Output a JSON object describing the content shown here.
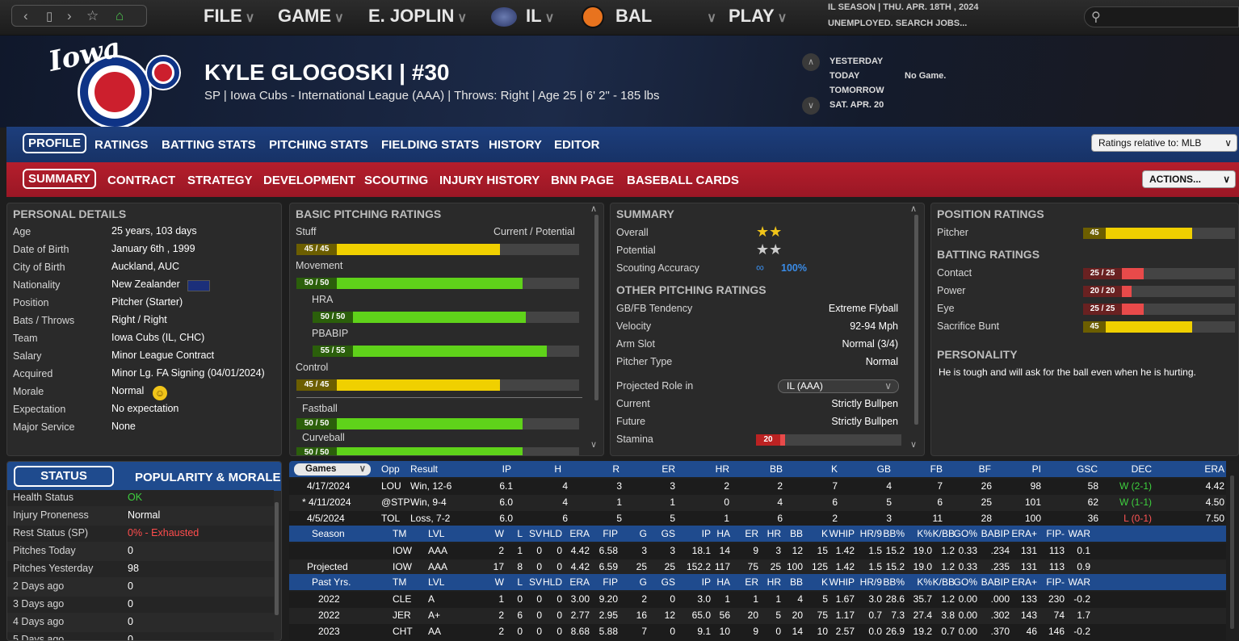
{
  "topbar": {
    "menus": [
      "FILE",
      "GAME",
      "E. JOPLIN",
      "IL",
      "BAL",
      "PLAY"
    ],
    "season_line": "IL SEASON  |  THU. APR. 18TH , 2024",
    "status_line": "UNEMPLOYED. SEARCH JOBS..."
  },
  "player": {
    "name": "KYLE GLOGOSKI  |  #30",
    "subtitle": "SP | Iowa Cubs - International League (AAA)  |  Throws: Right  |  Age 25  |  6' 2\" - 185 lbs"
  },
  "schedule": {
    "days": [
      "YESTERDAY",
      "TODAY",
      "TOMORROW",
      "SAT. APR. 20"
    ],
    "today_game": "No Game."
  },
  "tabs_primary": [
    "PROFILE",
    "RATINGS",
    "BATTING STATS",
    "PITCHING STATS",
    "FIELDING STATS",
    "HISTORY",
    "EDITOR"
  ],
  "tabs_secondary": [
    "SUMMARY",
    "CONTRACT",
    "STRATEGY",
    "DEVELOPMENT",
    "SCOUTING",
    "INJURY HISTORY",
    "BNN PAGE",
    "BASEBALL CARDS"
  ],
  "ratings_relative": "Ratings relative to: MLB",
  "actions": "ACTIONS...",
  "personal": {
    "title": "PERSONAL DETAILS",
    "rows": [
      [
        "Age",
        "25 years, 103 days"
      ],
      [
        "Date of Birth",
        "January 6th , 1999"
      ],
      [
        "City of Birth",
        "Auckland, AUC"
      ],
      [
        "Nationality",
        "New Zealander"
      ],
      [
        "Position",
        "Pitcher (Starter)"
      ],
      [
        "Bats / Throws",
        "Right / Right"
      ],
      [
        "Team",
        "Iowa Cubs (IL, CHC)"
      ],
      [
        "Salary",
        "Minor League Contract"
      ],
      [
        "Acquired",
        "Minor Lg. FA Signing (04/01/2024)"
      ],
      [
        "Morale",
        "Normal"
      ],
      [
        "Expectation",
        "No expectation"
      ],
      [
        "Major Service",
        "None"
      ]
    ]
  },
  "basic_pitching": {
    "title": "BASIC PITCHING RATINGS",
    "col": "Current / Potential",
    "rows": [
      {
        "label": "Stuff",
        "text": "45 / 45",
        "value": 45,
        "color": "#f0d000"
      },
      {
        "label": "Movement",
        "text": "50 / 50",
        "value": 50,
        "color": "#5fd21a"
      },
      {
        "label": "HRA",
        "text": "50 / 50",
        "value": 50,
        "color": "#5fd21a"
      },
      {
        "label": "PBABIP",
        "text": "55 / 55",
        "value": 55,
        "color": "#5fd21a"
      },
      {
        "label": "Control",
        "text": "45 / 45",
        "value": 45,
        "color": "#f0d000"
      },
      {
        "label": "Fastball",
        "text": "50 / 50",
        "value": 50,
        "color": "#5fd21a"
      },
      {
        "label": "Curveball",
        "text": "50 / 50",
        "value": 50,
        "color": "#5fd21a"
      }
    ]
  },
  "summary": {
    "title": "SUMMARY",
    "overall_label": "Overall",
    "overall_stars": 2,
    "potential_label": "Potential",
    "potential_stars": 2,
    "scouting_label": "Scouting Accuracy",
    "scouting_value": "100%",
    "other_title": "OTHER PITCHING RATINGS",
    "other": [
      [
        "GB/FB Tendency",
        "Extreme Flyball"
      ],
      [
        "Velocity",
        "92-94 Mph"
      ],
      [
        "Arm Slot",
        "Normal (3/4)"
      ],
      [
        "Pitcher Type",
        "Normal"
      ]
    ],
    "role_label": "Projected Role in",
    "role_select": "IL (AAA)",
    "current_label": "Current",
    "current_value": "Strictly Bullpen",
    "future_label": "Future",
    "future_value": "Strictly Bullpen",
    "stamina_label": "Stamina",
    "stamina_text": "20",
    "stamina_value": 20
  },
  "position": {
    "title": "POSITION RATINGS",
    "rows": [
      {
        "label": "Pitcher",
        "text": "45",
        "value": 45,
        "color": "#f0d000"
      }
    ],
    "batting_title": "BATTING RATINGS",
    "batting": [
      {
        "label": "Contact",
        "text": "25 / 25",
        "value": 25,
        "color": "#e84a4a"
      },
      {
        "label": "Power",
        "text": "20 / 20",
        "value": 20,
        "color": "#e84a4a"
      },
      {
        "label": "Eye",
        "text": "25 / 25",
        "value": 25,
        "color": "#e84a4a"
      },
      {
        "label": "Sacrifice Bunt",
        "text": "45",
        "value": 45,
        "color": "#f0d000"
      }
    ],
    "personality_title": "PERSONALITY",
    "personality": "He is tough and will ask for the ball even when he is hurting."
  },
  "status": {
    "tab_status": "STATUS",
    "tab_pop": "POPULARITY & MORALE",
    "rows": [
      [
        "Health Status",
        "OK",
        "#3ed13e"
      ],
      [
        "Injury Proneness",
        "Normal",
        "#fff"
      ],
      [
        "Rest Status (SP)",
        "0% - Exhausted",
        "#ff4d4d"
      ],
      [
        "Pitches Today",
        "0",
        "#fff"
      ],
      [
        "Pitches Yesterday",
        "98",
        "#fff"
      ],
      [
        "2 Days ago",
        "0",
        "#fff"
      ],
      [
        "3 Days ago",
        "0",
        "#fff"
      ],
      [
        "4 Days ago",
        "0",
        "#fff"
      ],
      [
        "5 Days ago",
        "0",
        "#fff"
      ]
    ]
  },
  "games": {
    "select": "Games",
    "headers": [
      "Opp",
      "Result",
      "IP",
      "H",
      "R",
      "ER",
      "HR",
      "BB",
      "K",
      "GB",
      "FB",
      "BF",
      "PI",
      "GSC",
      "DEC",
      "ERA"
    ],
    "rows": [
      [
        "4/17/2024",
        "LOU",
        "Win, 12-6",
        "6.1",
        "4",
        "3",
        "3",
        "2",
        "2",
        "7",
        "4",
        "7",
        "26",
        "98",
        "58",
        "W (2-1)",
        "4.42"
      ],
      [
        "* 4/11/2024",
        "@STP",
        "Win, 9-4",
        "6.0",
        "4",
        "1",
        "1",
        "0",
        "4",
        "6",
        "5",
        "6",
        "25",
        "101",
        "62",
        "W (1-1)",
        "4.50"
      ],
      [
        "4/5/2024",
        "TOL",
        "Loss, 7-2",
        "6.0",
        "6",
        "5",
        "5",
        "1",
        "6",
        "2",
        "3",
        "11",
        "28",
        "100",
        "36",
        "L (0-1)",
        "7.50"
      ]
    ]
  },
  "stats": {
    "headers": [
      "TM",
      "LVL",
      "W",
      "L",
      "SV",
      "HLD",
      "ERA",
      "FIP",
      "G",
      "GS",
      "IP",
      "HA",
      "ER",
      "HR",
      "BB",
      "K",
      "WHIP",
      "HR/9",
      "BB%",
      "K%",
      "K/BB",
      "GO%",
      "BABIP",
      "ERA+",
      "FIP-",
      "WAR"
    ],
    "season_label": "Season",
    "past_label": "Past Yrs.",
    "season": [
      [
        "",
        "IOW",
        "AAA",
        "2",
        "1",
        "0",
        "0",
        "4.42",
        "6.58",
        "3",
        "3",
        "18.1",
        "14",
        "9",
        "3",
        "12",
        "15",
        "1.42",
        "1.5",
        "15.2",
        "19.0",
        "1.2",
        "0.33",
        ".234",
        "131",
        "113",
        "0.1"
      ],
      [
        "Projected",
        "IOW",
        "AAA",
        "17",
        "8",
        "0",
        "0",
        "4.42",
        "6.59",
        "25",
        "25",
        "152.2",
        "117",
        "75",
        "25",
        "100",
        "125",
        "1.42",
        "1.5",
        "15.2",
        "19.0",
        "1.2",
        "0.33",
        ".235",
        "131",
        "113",
        "0.9"
      ]
    ],
    "past": [
      [
        "2022",
        "CLE",
        "A",
        "1",
        "0",
        "0",
        "0",
        "3.00",
        "9.20",
        "2",
        "0",
        "3.0",
        "1",
        "1",
        "1",
        "4",
        "5",
        "1.67",
        "3.0",
        "28.6",
        "35.7",
        "1.2",
        "0.00",
        ".000",
        "133",
        "230",
        "-0.2"
      ],
      [
        "2022",
        "JER",
        "A+",
        "2",
        "6",
        "0",
        "0",
        "2.77",
        "2.95",
        "16",
        "12",
        "65.0",
        "56",
        "20",
        "5",
        "20",
        "75",
        "1.17",
        "0.7",
        "7.3",
        "27.4",
        "3.8",
        "0.00",
        ".302",
        "143",
        "74",
        "1.7"
      ],
      [
        "2023",
        "CHT",
        "AA",
        "2",
        "0",
        "0",
        "0",
        "8.68",
        "5.88",
        "7",
        "0",
        "9.1",
        "10",
        "9",
        "0",
        "14",
        "10",
        "2.57",
        "0.0",
        "26.9",
        "19.2",
        "0.7",
        "0.00",
        ".370",
        "46",
        "146",
        "-0.2"
      ]
    ]
  }
}
